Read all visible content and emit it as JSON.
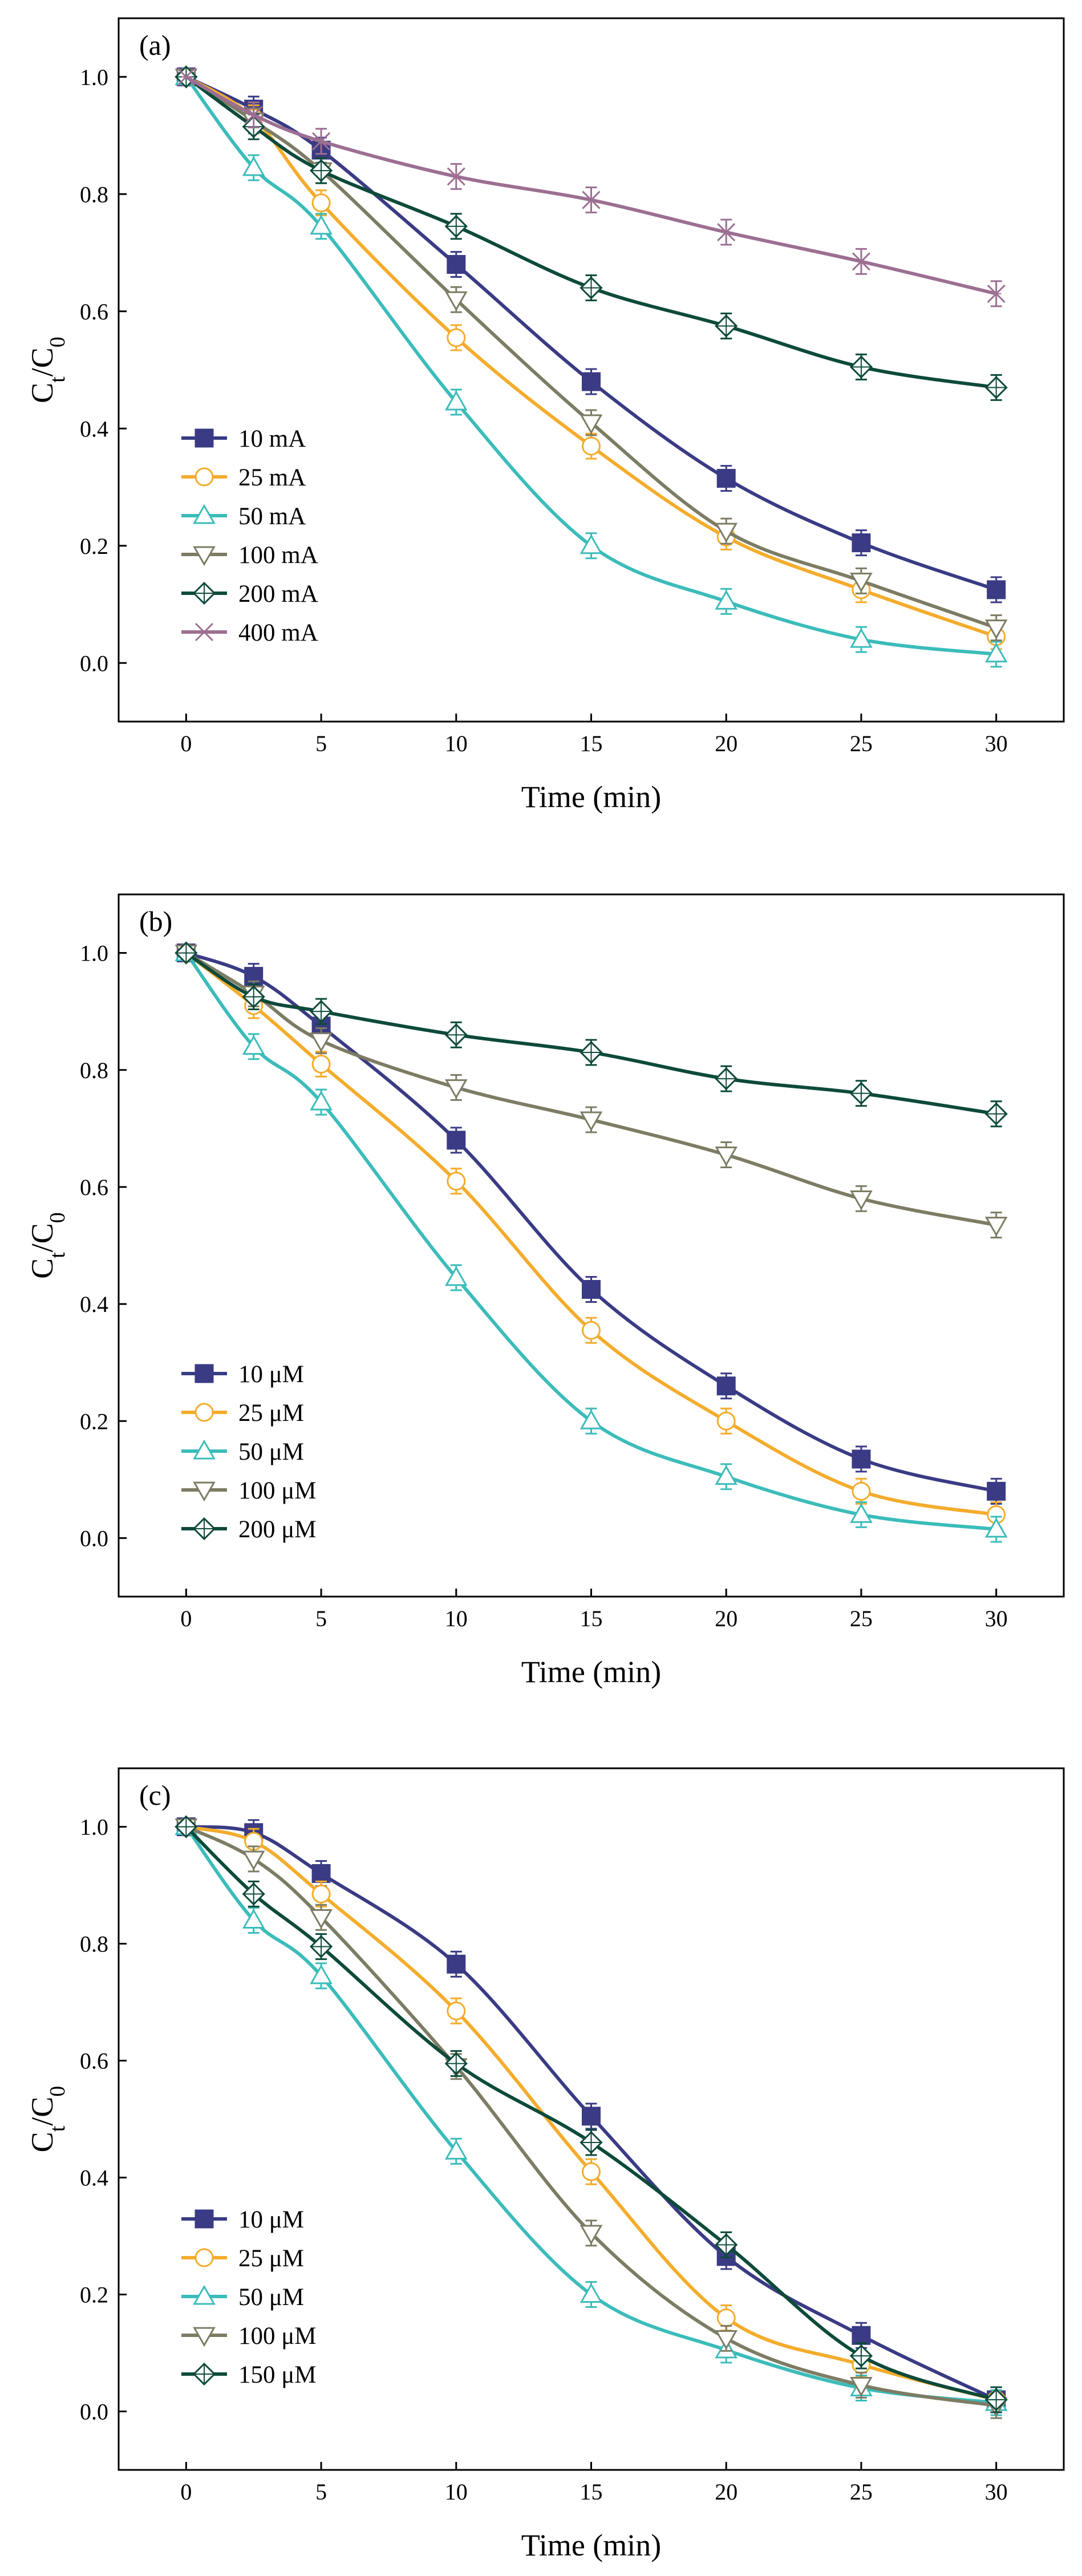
{
  "chart_data": [
    {
      "type": "line",
      "panel_label": "(a)",
      "xlabel": "Time (min)",
      "ylabel": "Ct/C0",
      "xlim": [
        -2.5,
        32.5
      ],
      "ylim": [
        -0.1,
        1.1
      ],
      "xticks": [
        0,
        5,
        10,
        15,
        20,
        25,
        30
      ],
      "yticks": [
        0.0,
        0.2,
        0.4,
        0.6,
        0.8,
        1.0
      ],
      "legend_position": "lower-left",
      "x": [
        0,
        2.5,
        5,
        10,
        15,
        20,
        25,
        30
      ],
      "series": [
        {
          "name": "10 mA",
          "marker": "square-filled",
          "color": "#3a3b84",
          "values": [
            1.0,
            0.945,
            0.875,
            0.68,
            0.48,
            0.315,
            0.205,
            0.125
          ]
        },
        {
          "name": "25 mA",
          "marker": "circle-open",
          "color": "#f4ac2c",
          "values": [
            1.0,
            0.93,
            0.785,
            0.555,
            0.37,
            0.215,
            0.125,
            0.045
          ]
        },
        {
          "name": "50 mA",
          "marker": "triangle-up-open",
          "color": "#3bbcba",
          "values": [
            1.0,
            0.845,
            0.745,
            0.445,
            0.2,
            0.105,
            0.04,
            0.015
          ]
        },
        {
          "name": "100 mA",
          "marker": "triangle-down-open",
          "color": "#7d7c64",
          "values": [
            1.0,
            0.925,
            0.84,
            0.62,
            0.41,
            0.225,
            0.14,
            0.06
          ]
        },
        {
          "name": "200 mA",
          "marker": "diamond-open",
          "color": "#0d4a3a",
          "values": [
            1.0,
            0.915,
            0.84,
            0.745,
            0.64,
            0.575,
            0.505,
            0.47
          ]
        },
        {
          "name": "400 mA",
          "marker": "x-cross",
          "color": "#9c6f92",
          "values": [
            1.0,
            0.935,
            0.89,
            0.83,
            0.79,
            0.735,
            0.685,
            0.63
          ]
        }
      ]
    },
    {
      "type": "line",
      "panel_label": "(b)",
      "xlabel": "Time (min)",
      "ylabel": "Ct/C0",
      "xlim": [
        -2.5,
        32.5
      ],
      "ylim": [
        -0.1,
        1.1
      ],
      "xticks": [
        0,
        5,
        10,
        15,
        20,
        25,
        30
      ],
      "yticks": [
        0.0,
        0.2,
        0.4,
        0.6,
        0.8,
        1.0
      ],
      "legend_position": "lower-left",
      "x": [
        0,
        2.5,
        5,
        10,
        15,
        20,
        25,
        30
      ],
      "series": [
        {
          "name": "10 μM",
          "marker": "square-filled",
          "color": "#3a3b84",
          "values": [
            1.0,
            0.96,
            0.875,
            0.68,
            0.425,
            0.26,
            0.135,
            0.08
          ]
        },
        {
          "name": "25 μM",
          "marker": "circle-open",
          "color": "#f4ac2c",
          "values": [
            1.0,
            0.91,
            0.81,
            0.61,
            0.355,
            0.2,
            0.08,
            0.04
          ]
        },
        {
          "name": "50 μM",
          "marker": "triangle-up-open",
          "color": "#3bbcba",
          "values": [
            1.0,
            0.84,
            0.745,
            0.445,
            0.2,
            0.105,
            0.04,
            0.015
          ]
        },
        {
          "name": "100 μM",
          "marker": "triangle-down-open",
          "color": "#7d7c64",
          "values": [
            1.0,
            0.93,
            0.85,
            0.77,
            0.715,
            0.655,
            0.58,
            0.535
          ]
        },
        {
          "name": "200 μM",
          "marker": "diamond-open",
          "color": "#0d4a3a",
          "values": [
            1.0,
            0.925,
            0.9,
            0.86,
            0.83,
            0.785,
            0.76,
            0.725
          ]
        }
      ]
    },
    {
      "type": "line",
      "panel_label": "(c)",
      "xlabel": "Time (min)",
      "ylabel": "Ct/C0",
      "xlim": [
        -2.5,
        32.5
      ],
      "ylim": [
        -0.1,
        1.1
      ],
      "xticks": [
        0,
        5,
        10,
        15,
        20,
        25,
        30
      ],
      "yticks": [
        0.0,
        0.2,
        0.4,
        0.6,
        0.8,
        1.0
      ],
      "legend_position": "lower-left",
      "x": [
        0,
        2.5,
        5,
        10,
        15,
        20,
        25,
        30
      ],
      "series": [
        {
          "name": "10 μM",
          "marker": "square-filled",
          "color": "#3a3b84",
          "values": [
            1.0,
            0.99,
            0.92,
            0.765,
            0.505,
            0.265,
            0.13,
            0.02
          ]
        },
        {
          "name": "25 μM",
          "marker": "circle-open",
          "color": "#f4ac2c",
          "values": [
            1.0,
            0.975,
            0.885,
            0.685,
            0.41,
            0.16,
            0.08,
            0.02
          ]
        },
        {
          "name": "50 μM",
          "marker": "triangle-up-open",
          "color": "#3bbcba",
          "values": [
            1.0,
            0.84,
            0.745,
            0.445,
            0.2,
            0.105,
            0.04,
            0.015
          ]
        },
        {
          "name": "100 μM",
          "marker": "triangle-down-open",
          "color": "#7d7c64",
          "values": [
            1.0,
            0.945,
            0.845,
            0.59,
            0.305,
            0.125,
            0.045,
            0.01
          ]
        },
        {
          "name": "150 μM",
          "marker": "diamond-open",
          "color": "#0d4a3a",
          "values": [
            1.0,
            0.885,
            0.795,
            0.595,
            0.46,
            0.285,
            0.095,
            0.02
          ]
        }
      ]
    }
  ]
}
